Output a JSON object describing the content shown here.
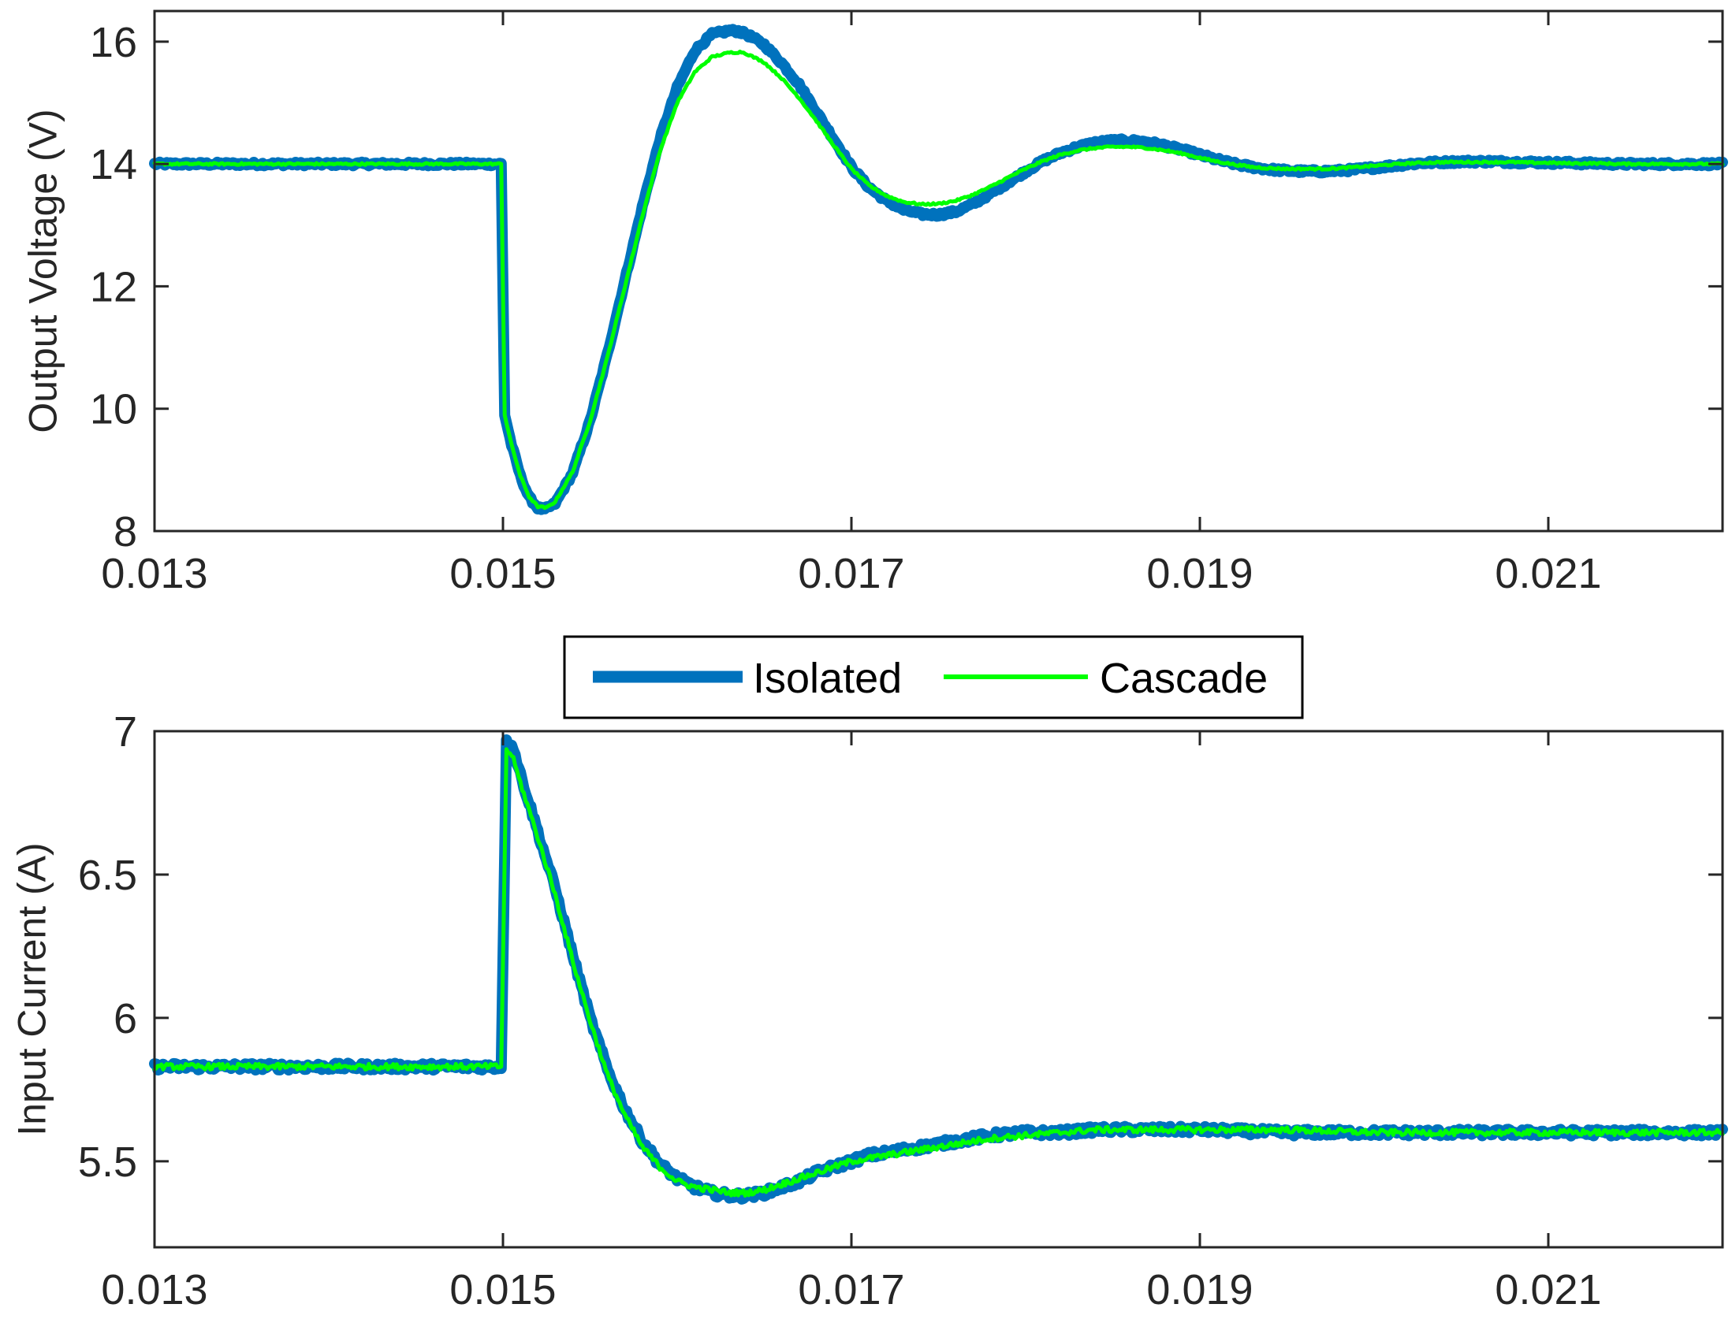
{
  "chart_data": [
    {
      "type": "line",
      "id": "top",
      "ylabel": "Output Voltage (V)",
      "xlim": [
        0.013,
        0.022
      ],
      "ylim": [
        8,
        16.5
      ],
      "xticks": [
        0.013,
        0.015,
        0.017,
        0.019,
        0.021
      ],
      "xtick_labels": [
        "0.013",
        "0.015",
        "0.017",
        "0.019",
        "0.021"
      ],
      "yticks": [
        8,
        10,
        12,
        14,
        16
      ],
      "ytick_labels": [
        "8",
        "10",
        "12",
        "14",
        "16"
      ],
      "grid": false,
      "series": [
        {
          "name": "Isolated",
          "x": [
            0.013,
            0.01495,
            0.01499,
            0.01501,
            0.01505,
            0.0151,
            0.01515,
            0.0152,
            0.01524,
            0.0153,
            0.0154,
            0.0155,
            0.0156,
            0.0157,
            0.0158,
            0.0159,
            0.016,
            0.0161,
            0.0162,
            0.0163,
            0.01635,
            0.0164,
            0.0165,
            0.0166,
            0.0167,
            0.0168,
            0.0169,
            0.017,
            0.0171,
            0.0172,
            0.0173,
            0.0174,
            0.0175,
            0.0176,
            0.0177,
            0.0178,
            0.0179,
            0.018,
            0.0181,
            0.0182,
            0.0183,
            0.0184,
            0.0185,
            0.0186,
            0.0187,
            0.0188,
            0.0189,
            0.019,
            0.0191,
            0.0192,
            0.0193,
            0.0194,
            0.0195,
            0.0196,
            0.0197,
            0.0198,
            0.0199,
            0.02,
            0.0201,
            0.0202,
            0.0203,
            0.0204,
            0.0205,
            0.0206,
            0.0207,
            0.0208,
            0.0209,
            0.021,
            0.0211,
            0.0212,
            0.0213,
            0.0214,
            0.0215,
            0.0216,
            0.0217,
            0.0218,
            0.0219,
            0.022
          ],
          "values": [
            14.0,
            14.0,
            14.0,
            9.9,
            9.4,
            8.9,
            8.55,
            8.38,
            8.35,
            8.45,
            8.95,
            9.8,
            10.9,
            12.1,
            13.3,
            14.4,
            15.25,
            15.85,
            16.12,
            16.18,
            16.17,
            16.12,
            15.95,
            15.65,
            15.3,
            14.85,
            14.4,
            13.95,
            13.62,
            13.4,
            13.25,
            13.18,
            13.17,
            13.22,
            13.35,
            13.52,
            13.7,
            13.88,
            14.05,
            14.18,
            14.28,
            14.35,
            14.38,
            14.38,
            14.36,
            14.3,
            14.23,
            14.15,
            14.07,
            14.0,
            13.95,
            13.91,
            13.89,
            13.88,
            13.88,
            13.89,
            13.91,
            13.94,
            13.97,
            14.0,
            14.02,
            14.03,
            14.04,
            14.04,
            14.04,
            14.03,
            14.03,
            14.02,
            14.02,
            14.01,
            14.01,
            14.0,
            14.0,
            14.0,
            14.0,
            14.0,
            14.0,
            14.0
          ],
          "noise": 0.03
        },
        {
          "name": "Cascade",
          "x": [
            0.013,
            0.01495,
            0.01499,
            0.01501,
            0.01505,
            0.0151,
            0.01515,
            0.0152,
            0.01525,
            0.0153,
            0.0154,
            0.0155,
            0.0156,
            0.0157,
            0.0158,
            0.0159,
            0.016,
            0.0161,
            0.0162,
            0.0163,
            0.01637,
            0.0164,
            0.0165,
            0.0166,
            0.0167,
            0.0168,
            0.0169,
            0.017,
            0.0171,
            0.0172,
            0.0173,
            0.0174,
            0.0175,
            0.0176,
            0.0177,
            0.0178,
            0.0179,
            0.018,
            0.0181,
            0.0182,
            0.0183,
            0.0184,
            0.0185,
            0.0186,
            0.0187,
            0.0188,
            0.0189,
            0.019,
            0.0191,
            0.0192,
            0.0193,
            0.0194,
            0.0195,
            0.0196,
            0.0197,
            0.0198,
            0.0199,
            0.02,
            0.0201,
            0.0202,
            0.0203,
            0.0204,
            0.0205,
            0.0206,
            0.0207,
            0.0208,
            0.0209,
            0.021,
            0.0211,
            0.0212,
            0.0213,
            0.0214,
            0.0215,
            0.0216,
            0.0217,
            0.0218,
            0.0219,
            0.022
          ],
          "values": [
            14.0,
            14.0,
            14.0,
            9.9,
            9.4,
            8.9,
            8.56,
            8.4,
            8.38,
            8.48,
            8.97,
            9.8,
            10.85,
            12.0,
            13.15,
            14.2,
            15.0,
            15.5,
            15.75,
            15.82,
            15.83,
            15.8,
            15.66,
            15.4,
            15.08,
            14.7,
            14.3,
            13.92,
            13.65,
            13.48,
            13.38,
            13.34,
            13.35,
            13.4,
            13.5,
            13.63,
            13.78,
            13.92,
            14.05,
            14.15,
            14.22,
            14.26,
            14.28,
            14.28,
            14.26,
            14.22,
            14.17,
            14.1,
            14.04,
            13.99,
            13.95,
            13.93,
            13.92,
            13.92,
            13.92,
            13.93,
            13.95,
            13.97,
            13.99,
            14.01,
            14.02,
            14.03,
            14.03,
            14.03,
            14.03,
            14.03,
            14.02,
            14.02,
            14.01,
            14.01,
            14.01,
            14.0,
            14.0,
            14.0,
            14.0,
            14.0,
            14.0,
            14.0
          ],
          "noise": 0.015
        }
      ]
    },
    {
      "type": "line",
      "id": "bottom",
      "ylabel": "Input Current (A)",
      "xlim": [
        0.013,
        0.022
      ],
      "ylim": [
        5.2,
        7.0
      ],
      "xticks": [
        0.013,
        0.015,
        0.017,
        0.019,
        0.021
      ],
      "xtick_labels": [
        "0.013",
        "0.015",
        "0.017",
        "0.019",
        "0.021"
      ],
      "yticks": [
        5.5,
        6,
        6.5,
        7
      ],
      "ytick_labels": [
        "5.5",
        "6",
        "6.5",
        "7"
      ],
      "grid": false,
      "series": [
        {
          "name": "Isolated",
          "x": [
            0.013,
            0.01495,
            0.01499,
            0.01502,
            0.01505,
            0.0151,
            0.0152,
            0.0153,
            0.0154,
            0.0155,
            0.0156,
            0.0157,
            0.0158,
            0.0159,
            0.016,
            0.0161,
            0.0162,
            0.0163,
            0.0164,
            0.0165,
            0.0166,
            0.0167,
            0.0168,
            0.0169,
            0.017,
            0.0171,
            0.0172,
            0.0173,
            0.0174,
            0.0175,
            0.0176,
            0.0177,
            0.0178,
            0.018,
            0.0182,
            0.0184,
            0.0186,
            0.0188,
            0.019,
            0.0195,
            0.02,
            0.0205,
            0.021,
            0.0215,
            0.022
          ],
          "values": [
            5.83,
            5.83,
            5.83,
            6.96,
            6.96,
            6.85,
            6.65,
            6.45,
            6.22,
            6.0,
            5.82,
            5.68,
            5.57,
            5.49,
            5.44,
            5.41,
            5.39,
            5.38,
            5.38,
            5.39,
            5.41,
            5.43,
            5.46,
            5.48,
            5.5,
            5.52,
            5.53,
            5.54,
            5.55,
            5.56,
            5.57,
            5.58,
            5.59,
            5.6,
            5.6,
            5.61,
            5.61,
            5.61,
            5.61,
            5.6,
            5.6,
            5.6,
            5.6,
            5.6,
            5.6
          ],
          "noise": 0.012
        },
        {
          "name": "Cascade",
          "x": [
            0.013,
            0.01495,
            0.01499,
            0.01502,
            0.01505,
            0.0151,
            0.0152,
            0.0153,
            0.0154,
            0.0155,
            0.0156,
            0.0157,
            0.0158,
            0.0159,
            0.016,
            0.0161,
            0.0162,
            0.0163,
            0.0164,
            0.0165,
            0.0166,
            0.0167,
            0.0168,
            0.0169,
            0.017,
            0.0171,
            0.0172,
            0.0173,
            0.0174,
            0.0175,
            0.0176,
            0.0177,
            0.0178,
            0.018,
            0.0182,
            0.0184,
            0.0186,
            0.0188,
            0.019,
            0.0195,
            0.02,
            0.0205,
            0.021,
            0.0215,
            0.022
          ],
          "values": [
            5.83,
            5.83,
            5.83,
            6.93,
            6.92,
            6.82,
            6.63,
            6.43,
            6.2,
            5.99,
            5.8,
            5.66,
            5.55,
            5.48,
            5.43,
            5.41,
            5.4,
            5.39,
            5.39,
            5.4,
            5.42,
            5.44,
            5.46,
            5.48,
            5.5,
            5.51,
            5.52,
            5.53,
            5.54,
            5.55,
            5.56,
            5.57,
            5.58,
            5.59,
            5.6,
            5.61,
            5.61,
            5.61,
            5.61,
            5.61,
            5.6,
            5.6,
            5.6,
            5.6,
            5.6
          ],
          "noise": 0.01
        }
      ]
    }
  ],
  "legend": {
    "placement": "between-plots",
    "entries": [
      {
        "label": "Isolated",
        "color": "#0072bd"
      },
      {
        "label": "Cascade",
        "color": "#00ff00"
      }
    ]
  },
  "colors": {
    "isolated": "#0072bd",
    "cascade": "#00ff00",
    "axes": "#262626"
  }
}
